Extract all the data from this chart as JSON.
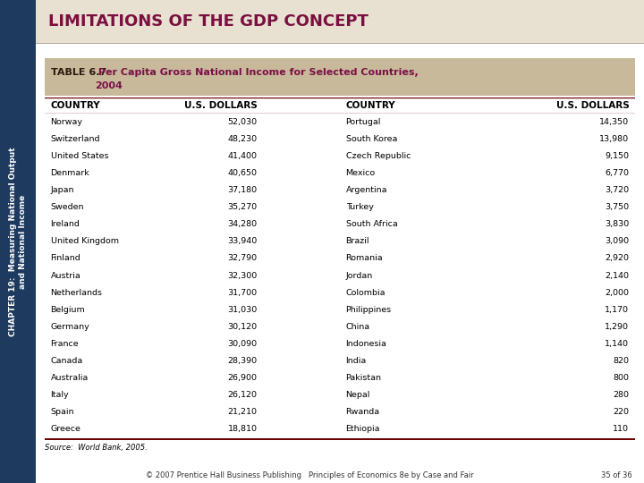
{
  "title": "LIMITATIONS OF THE GDP CONCEPT",
  "table_label": "TABLE 6.7",
  "table_title_part": " Per Capita Gross National Income for Selected Countries,\n            2004",
  "col_headers": [
    "COUNTRY",
    "U.S. DOLLARS",
    "COUNTRY",
    "U.S. DOLLARS"
  ],
  "left_countries": [
    "Norway",
    "Switzerland",
    "United States",
    "Denmark",
    "Japan",
    "Sweden",
    "Ireland",
    "United Kingdom",
    "Finland",
    "Austria",
    "Netherlands",
    "Belgium",
    "Germany",
    "France",
    "Canada",
    "Australia",
    "Italy",
    "Spain",
    "Greece"
  ],
  "left_values": [
    "52,030",
    "48,230",
    "41,400",
    "40,650",
    "37,180",
    "35,270",
    "34,280",
    "33,940",
    "32,790",
    "32,300",
    "31,700",
    "31,030",
    "30,120",
    "30,090",
    "28,390",
    "26,900",
    "26,120",
    "21,210",
    "18,810"
  ],
  "right_countries": [
    "Portugal",
    "South Korea",
    "Czech Republic",
    "Mexico",
    "Argentina",
    "Turkey",
    "South Africa",
    "Brazil",
    "Romania",
    "Jordan",
    "Colombia",
    "Philippines",
    "China",
    "Indonesia",
    "India",
    "Pakistan",
    "Nepal",
    "Rwanda",
    "Ethiopia"
  ],
  "right_values": [
    "14,350",
    "13,980",
    "9,150",
    "6,770",
    "3,720",
    "3,750",
    "3,830",
    "3,090",
    "2,920",
    "2,140",
    "2,000",
    "1,170",
    "1,290",
    "1,140",
    "820",
    "800",
    "280",
    "220",
    "110"
  ],
  "source": "Source:  World Bank, 2005.",
  "footer": "© 2007 Prentice Hall Business Publishing   Principles of Economics 8e by Case and Fair",
  "page": "35 of 36",
  "sidebar_line1": "CHAPTER 19:  Measuring National Output",
  "sidebar_line2": "and National Income",
  "bg_color": "#f0ede6",
  "table_header_bg": "#c8b99a",
  "title_color": "#7a1040",
  "col_header_color": "#000000",
  "header_line_color": "#6b0000",
  "sidebar_bg": "#1e3a5f",
  "sidebar_text_color": "#ffffff",
  "title_bar_bg": "#e8e0d0",
  "footer_color": "#333333"
}
